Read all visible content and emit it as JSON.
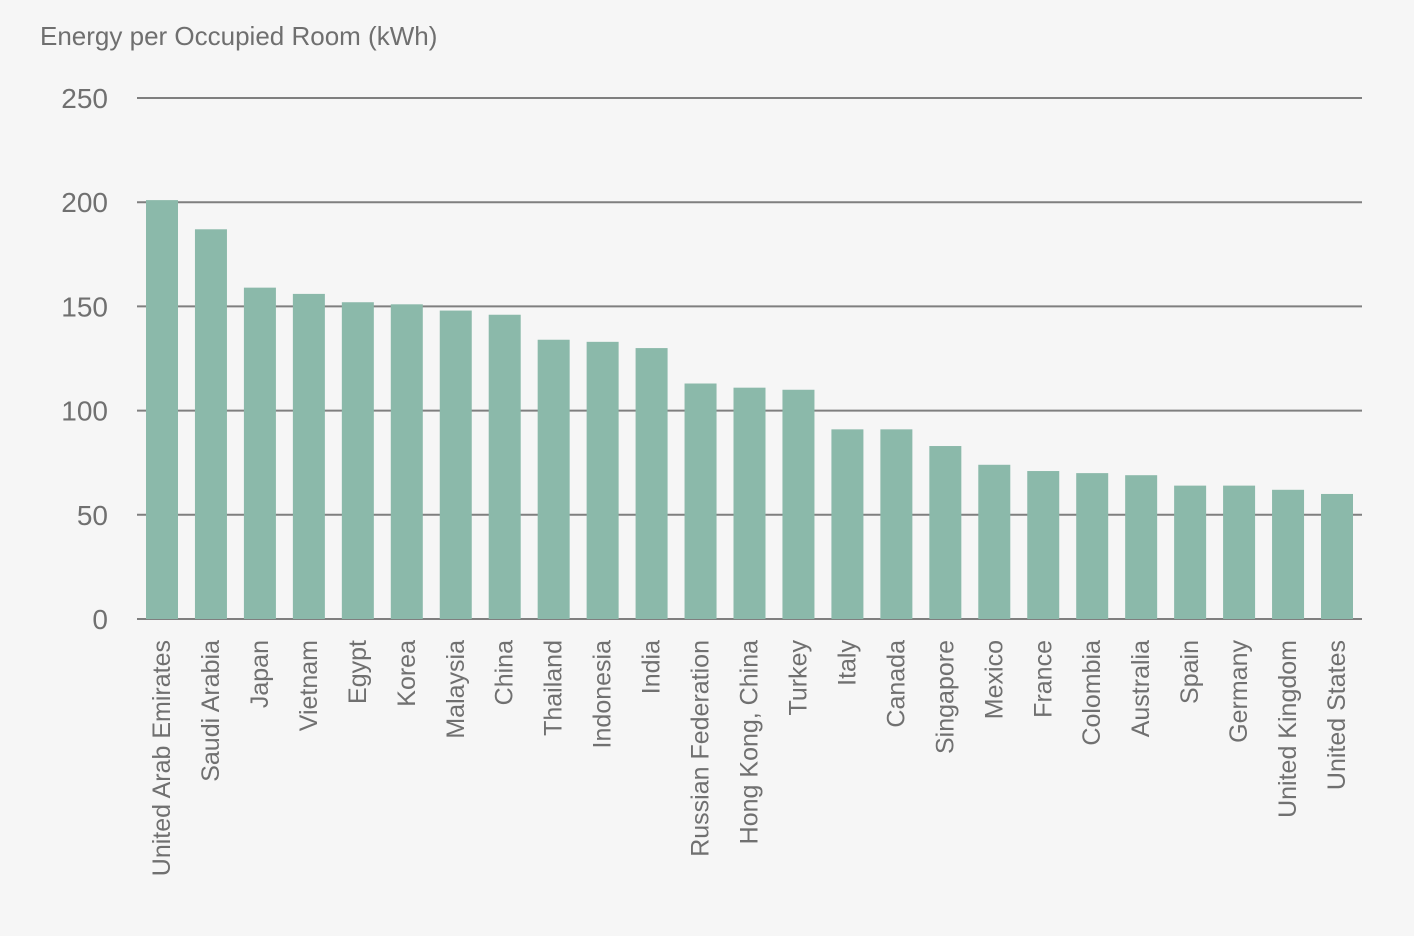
{
  "chart_data": {
    "type": "bar",
    "title": "Energy per Occupied Room (kWh)",
    "xlabel": "",
    "ylabel": "",
    "ylim": [
      0,
      250
    ],
    "yticks": [
      0,
      50,
      100,
      150,
      200,
      250
    ],
    "grid": true,
    "legend": "none",
    "bar_color": "#8bb9aa",
    "gridline_color": "#6b6b6b",
    "background_color": "#f6f6f6",
    "categories": [
      "United Arab Emirates",
      "Saudi Arabia",
      "Japan",
      "Vietnam",
      "Egypt",
      "Korea",
      "Malaysia",
      "China",
      "Thailand",
      "Indonesia",
      "India",
      "Russian Federation",
      "Hong Kong, China",
      "Turkey",
      "Italy",
      "Canada",
      "Singapore",
      "Mexico",
      "France",
      "Colombia",
      "Australia",
      "Spain",
      "Germany",
      "United Kingdom",
      "United States"
    ],
    "values": [
      201,
      187,
      159,
      156,
      152,
      151,
      148,
      146,
      134,
      133,
      130,
      113,
      111,
      110,
      91,
      91,
      83,
      74,
      71,
      70,
      69,
      64,
      64,
      62,
      60
    ]
  }
}
